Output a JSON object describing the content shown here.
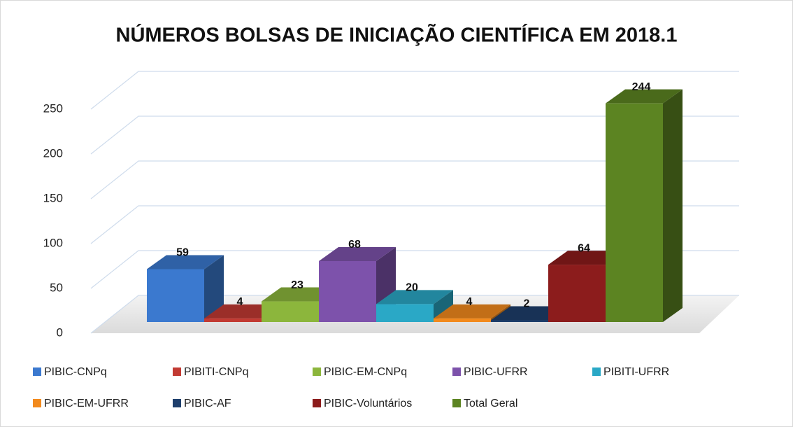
{
  "chart_data": {
    "type": "bar3d",
    "title": "NÚMEROS BOLSAS DE INICIAÇÃO CIENTÍFICA EM 2018.1",
    "series": [
      {
        "name": "PIBIC-CNPq",
        "color": "#3b79cf",
        "values": [
          59
        ]
      },
      {
        "name": "PIBITI-CNPq",
        "color": "#c23a33",
        "values": [
          4
        ]
      },
      {
        "name": "PIBIC-EM-CNPq",
        "color": "#8cb63c",
        "values": [
          23
        ]
      },
      {
        "name": "PIBIC-UFRR",
        "color": "#7d52ab",
        "values": [
          68
        ]
      },
      {
        "name": "PIBITI-UFRR",
        "color": "#2aa8c6",
        "values": [
          20
        ]
      },
      {
        "name": "PIBIC-EM-UFRR",
        "color": "#f28a1d",
        "values": [
          4
        ]
      },
      {
        "name": "PIBIC-AF",
        "color": "#1e3f6c",
        "values": [
          2
        ]
      },
      {
        "name": "PIBIC-Voluntários",
        "color": "#8c1c1c",
        "values": [
          64
        ]
      },
      {
        "name": "Total Geral",
        "color": "#5c8422",
        "values": [
          244
        ]
      }
    ],
    "ylim": [
      0,
      250
    ],
    "yticks": [
      0,
      50,
      100,
      150,
      200,
      250
    ],
    "grid": true,
    "legend": "bottom"
  }
}
